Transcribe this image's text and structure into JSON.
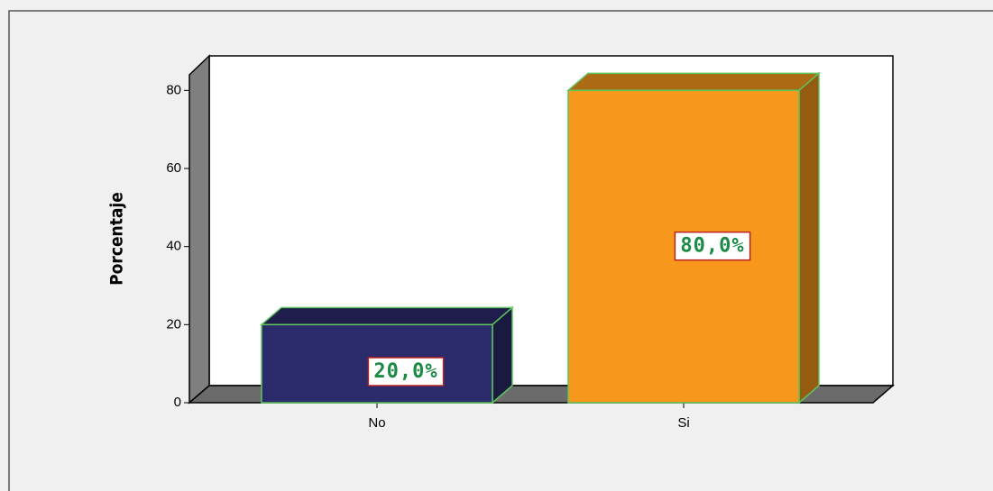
{
  "chart_data": {
    "type": "bar3d",
    "categories": [
      "No",
      "Si"
    ],
    "values": [
      20,
      80
    ],
    "value_labels": [
      "20,0%",
      "80,0%"
    ],
    "colors": [
      "#2b2a6b",
      "#f7981d"
    ],
    "ylabel": "Porcentaje",
    "ylim": [
      0,
      84
    ],
    "yticks": [
      0,
      20,
      40,
      60,
      80
    ],
    "grid": false
  }
}
